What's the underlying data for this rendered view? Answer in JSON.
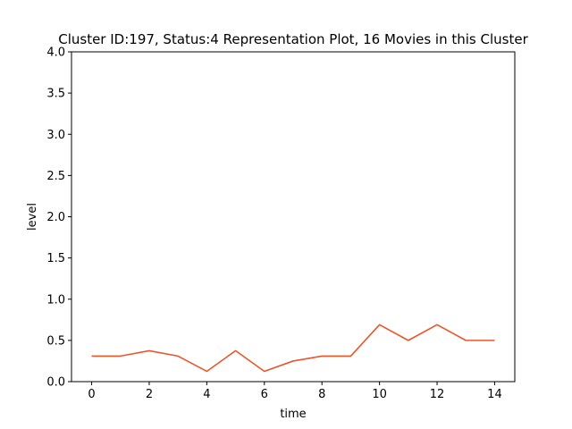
{
  "chart_data": {
    "type": "line",
    "title": "Cluster ID:197, Status:4 Representation Plot, 16 Movies in this Cluster",
    "xlabel": "time",
    "ylabel": "level",
    "xlim": [
      -0.7,
      14.7
    ],
    "ylim": [
      0,
      4.0
    ],
    "xticks": [
      0,
      2,
      4,
      6,
      8,
      10,
      12,
      14
    ],
    "xtick_labels": [
      "0",
      "2",
      "4",
      "6",
      "8",
      "10",
      "12",
      "14"
    ],
    "yticks": [
      0,
      0.5,
      1.0,
      1.5,
      2.0,
      2.5,
      3.0,
      3.5,
      4.0
    ],
    "ytick_labels": [
      "0.0",
      "0.5",
      "1.0",
      "1.5",
      "2.0",
      "2.5",
      "3.0",
      "3.5",
      "4.0"
    ],
    "grid": false,
    "series": [
      {
        "color": "#e8572a",
        "x": [
          0,
          1,
          2,
          3,
          4,
          5,
          6,
          7,
          8,
          9,
          10,
          11,
          12,
          13,
          14
        ],
        "values": [
          0.31,
          0.31,
          0.375,
          0.31,
          0.125,
          0.375,
          0.125,
          0.25,
          0.31,
          0.31,
          0.69,
          0.5,
          0.69,
          0.5,
          0.5
        ]
      }
    ]
  }
}
